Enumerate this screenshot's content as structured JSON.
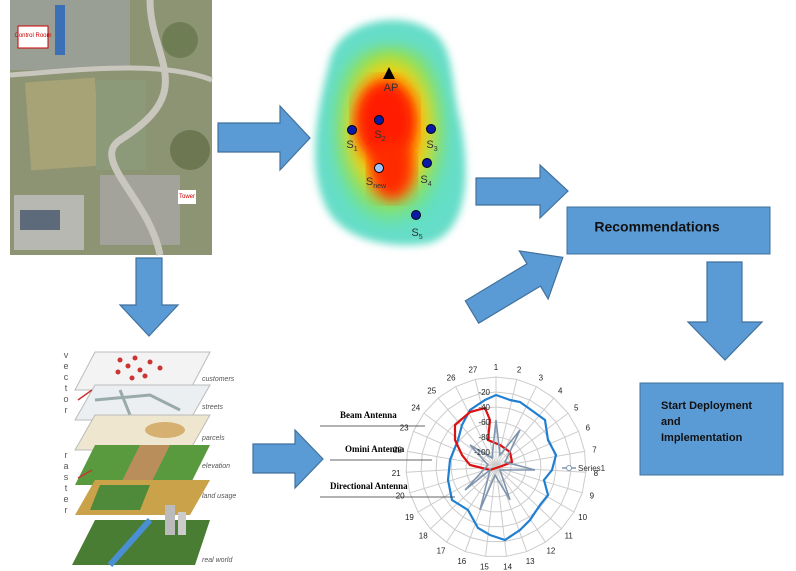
{
  "satellite": {
    "labels": [
      "Control Room",
      "Tower"
    ]
  },
  "heatmap": {
    "ap": "AP",
    "stations": [
      {
        "main": "S",
        "sub": "1"
      },
      {
        "main": "S",
        "sub": "2"
      },
      {
        "main": "S",
        "sub": "3"
      },
      {
        "main": "S",
        "sub": "4"
      },
      {
        "main": "S",
        "sub": "new"
      },
      {
        "main": "S",
        "sub": "5"
      }
    ]
  },
  "boxes": {
    "recommendations": "Recommendations",
    "deployment": [
      "Start Deployment",
      "and",
      "Implementation"
    ]
  },
  "gis": {
    "groups": [
      "vector",
      "raster"
    ],
    "layers": [
      "customers",
      "streets",
      "parcels",
      "elevation",
      "land usage",
      "real world"
    ]
  },
  "radar": {
    "spokes": [
      "1",
      "2",
      "3",
      "4",
      "5",
      "6",
      "7",
      "8",
      "9",
      "10",
      "11",
      "12",
      "13",
      "14",
      "15",
      "16",
      "17",
      "18",
      "19",
      "20",
      "21",
      "22",
      "23",
      "24",
      "25",
      "26",
      "27"
    ],
    "rings": [
      "-20",
      "-40",
      "-60",
      "-80",
      "-100"
    ],
    "legend": "Series1",
    "callouts": [
      "Beam Antenna",
      "Omini Antenna",
      "Directional Antenna"
    ]
  }
}
